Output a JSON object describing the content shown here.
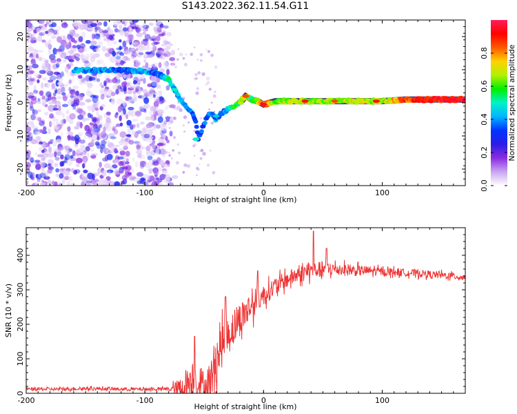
{
  "title": "S143.2022.362.11.54.G11",
  "chart_data": [
    {
      "type": "heatmap",
      "xlabel": "Height of straight line (km)",
      "ylabel": "Frequency (Hz)",
      "xlim": [
        -200,
        170
      ],
      "ylim": [
        -25,
        25
      ],
      "xticks": [
        -200,
        -100,
        0,
        100
      ],
      "yticks": [
        -20,
        -10,
        0,
        10,
        20
      ],
      "colorbar": {
        "label": "Normalized spectral amplitude",
        "range": [
          0,
          1
        ],
        "ticks": [
          "0.0",
          "0.2",
          "0.4",
          "0.6",
          "0.8"
        ],
        "colors": [
          "#ffffff",
          "#c9a6f2",
          "#8a2be2",
          "#2a1ee6",
          "#0033ff",
          "#00b4ff",
          "#00f2c8",
          "#00f000",
          "#b4f000",
          "#ffd200",
          "#ff5a00",
          "#ff0000",
          "#ff1e5a"
        ]
      },
      "ridge": {
        "x": [
          -160,
          -150,
          -140,
          -120,
          -100,
          -90,
          -80,
          -75,
          -70,
          -65,
          -60,
          -57,
          -55,
          -50,
          -45,
          -40,
          -35,
          -30,
          -25,
          -20,
          -15,
          -10,
          -5,
          0,
          10,
          30,
          50,
          80,
          100,
          120,
          170
        ],
        "y": [
          10,
          9.8,
          9.8,
          9.8,
          9.5,
          9,
          7,
          4,
          1,
          -1,
          -3,
          -6,
          -11,
          -6,
          -3,
          -5,
          -3,
          -2,
          -1,
          0,
          2,
          1,
          0.5,
          -0.5,
          0.5,
          0.5,
          0.5,
          0.5,
          0.5,
          1,
          1
        ],
        "amplitude": [
          0.45,
          0.4,
          0.4,
          0.35,
          0.45,
          0.3,
          0.55,
          0.35,
          0.45,
          0.35,
          0.35,
          0.3,
          0.35,
          0.35,
          0.35,
          0.4,
          0.35,
          0.45,
          0.55,
          0.6,
          0.75,
          0.55,
          0.6,
          0.9,
          0.6,
          0.7,
          0.65,
          0.7,
          0.65,
          0.85,
          0.95
        ]
      },
      "noise_region_x": [
        -200,
        -80
      ]
    },
    {
      "type": "line",
      "xlabel": "Height of straight line (km)",
      "ylabel": "SNR (10 * v/v)",
      "xlim": [
        -200,
        170
      ],
      "ylim": [
        0,
        480
      ],
      "xticks": [
        -200,
        -100,
        0,
        100
      ],
      "yticks": [
        0,
        100,
        200,
        300,
        400
      ],
      "color": "#ee3333",
      "trend": {
        "x": [
          -200,
          -170,
          -150,
          -120,
          -90,
          -70,
          -60,
          -55,
          -50,
          -45,
          -40,
          -35,
          -30,
          -20,
          -10,
          0,
          10,
          20,
          30,
          40,
          50,
          60,
          70,
          80,
          90,
          100,
          110,
          120,
          130,
          140,
          150,
          160,
          170
        ],
        "y": [
          12,
          12,
          14,
          12,
          12,
          12,
          40,
          30,
          10,
          30,
          100,
          140,
          170,
          215,
          255,
          285,
          310,
          330,
          345,
          355,
          360,
          360,
          358,
          355,
          355,
          352,
          352,
          350,
          348,
          345,
          342,
          340,
          335
        ]
      },
      "noise": {
        "x": [
          -200,
          -80,
          -65,
          -60,
          -50,
          -40,
          -30,
          -20,
          -10,
          0,
          20,
          40,
          60,
          100,
          170
        ],
        "amplitude": [
          5,
          5,
          50,
          60,
          60,
          70,
          60,
          50,
          45,
          30,
          25,
          25,
          20,
          12,
          10
        ]
      },
      "peaks": [
        {
          "x": -58,
          "y": 165
        },
        {
          "x": -32,
          "y": 280
        },
        {
          "x": -5,
          "y": 355
        },
        {
          "x": 42,
          "y": 470
        },
        {
          "x": 53,
          "y": 420
        }
      ]
    }
  ]
}
